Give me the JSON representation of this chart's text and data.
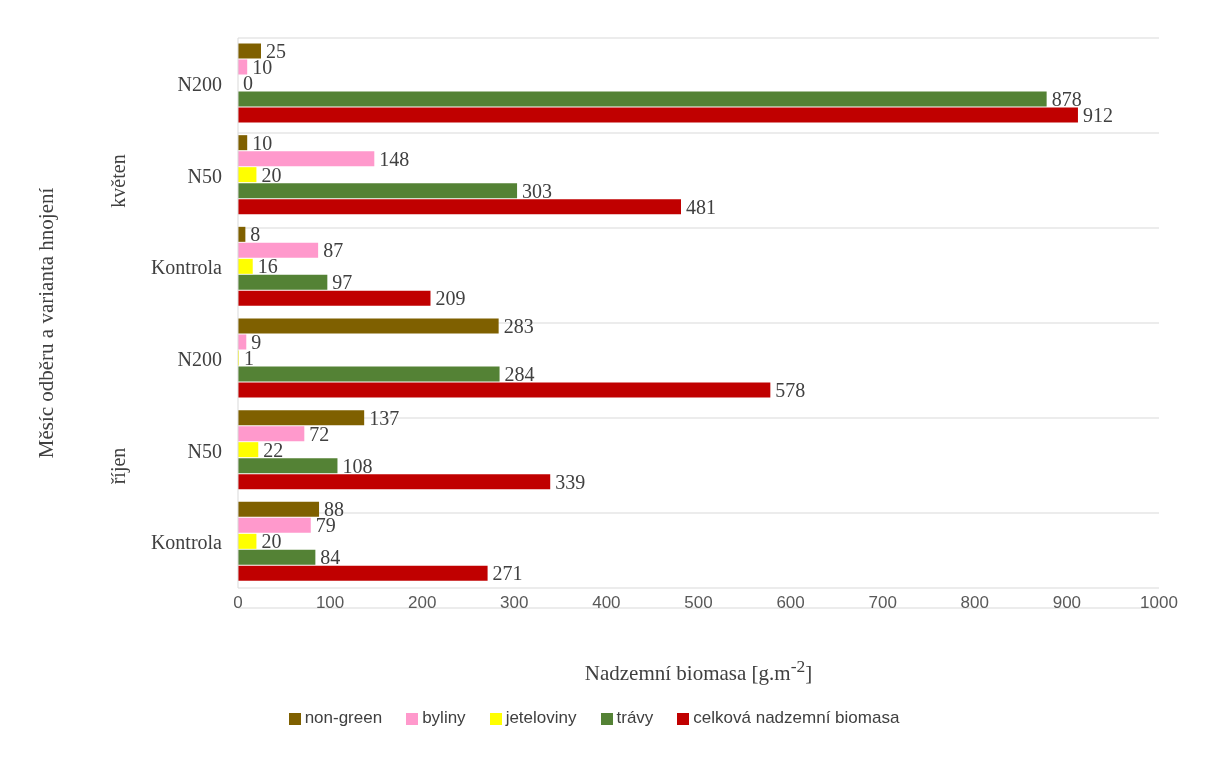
{
  "chart_data": {
    "type": "bar",
    "orientation": "horizontal",
    "xlabel": "Nadzemní biomasa [g.m$^{-2}$]",
    "ylabel": "Měsíc odběru a varianta hnojení",
    "annotations": [
      "květen",
      "říjen"
    ],
    "categories": [
      "N200",
      "N50",
      "Kontrola",
      "N200",
      "N50",
      "Kontrola"
    ],
    "series": [
      {
        "name": "non-green",
        "color": "#7f6000",
        "values": [
          25,
          10,
          8,
          283,
          137,
          88
        ]
      },
      {
        "name": "byliny",
        "color": "#ff99cc",
        "values": [
          10,
          148,
          87,
          9,
          72,
          79
        ]
      },
      {
        "name": "jeteloviny",
        "color": "#ffff00",
        "values": [
          0,
          20,
          16,
          1,
          22,
          20
        ]
      },
      {
        "name": "trávy",
        "color": "#548235",
        "values": [
          878,
          303,
          97,
          284,
          108,
          84
        ]
      },
      {
        "name": "celková nadzemní biomasa",
        "color": "#c00000",
        "values": [
          912,
          481,
          209,
          578,
          339,
          271
        ]
      }
    ],
    "xlim": [
      0,
      1000
    ],
    "xticks": [
      0,
      100,
      200,
      300,
      400,
      500,
      600,
      700,
      800,
      900,
      1000
    ],
    "grid": "y",
    "legend": "bottom",
    "data_labels": true
  }
}
